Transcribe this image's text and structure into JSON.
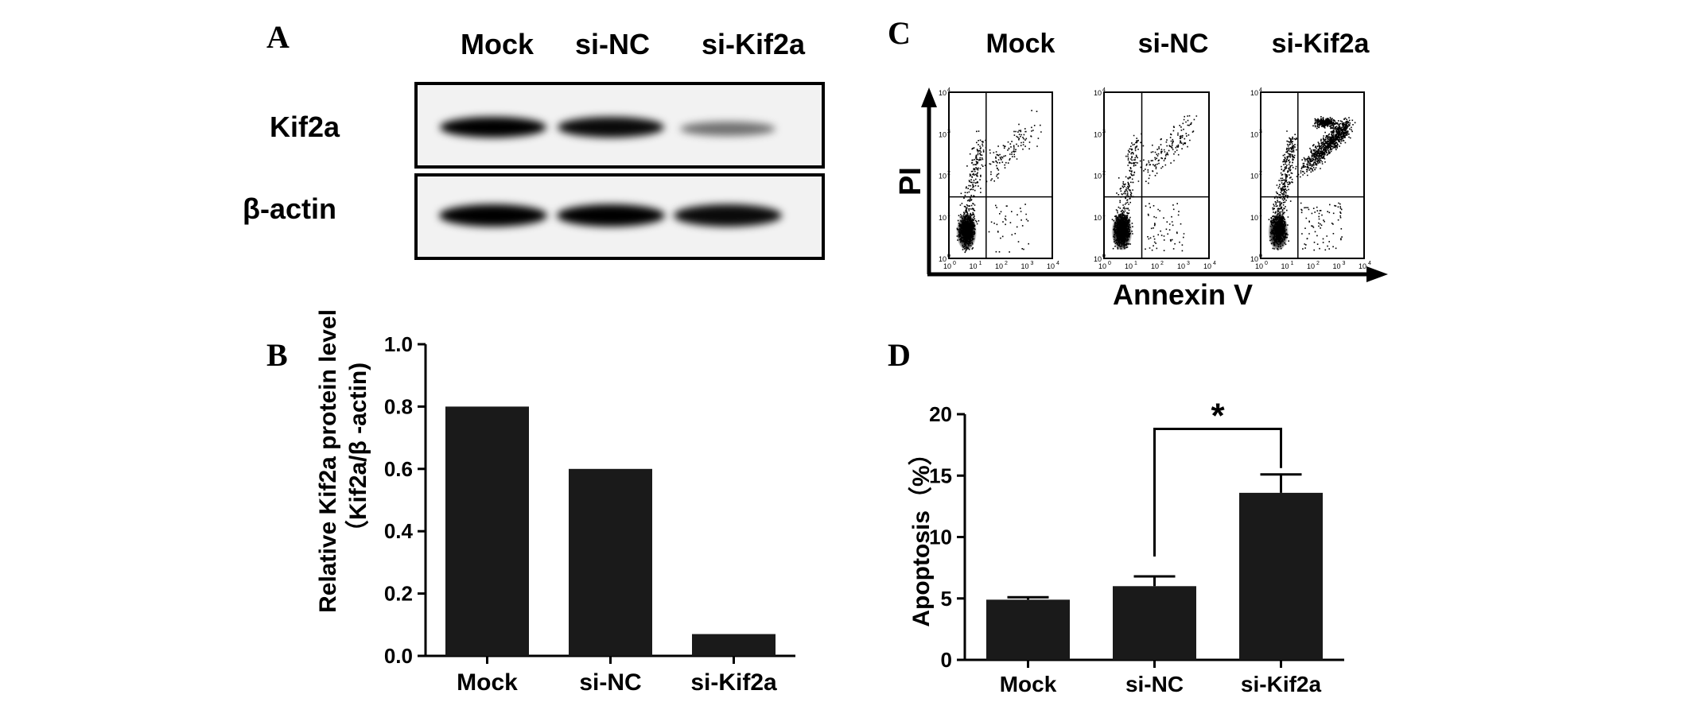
{
  "panels": {
    "A": {
      "letter": "A",
      "lanes": [
        "Mock",
        "si-NC",
        "si-Kif2a"
      ],
      "rows": [
        {
          "label": "Kif2a",
          "band_intensity": [
            1.0,
            0.95,
            0.45
          ]
        },
        {
          "label": "β-actin",
          "band_intensity": [
            1.0,
            1.0,
            0.95
          ]
        }
      ]
    },
    "B": {
      "letter": "B"
    },
    "C": {
      "letter": "C",
      "columns": [
        "Mock",
        "si-NC",
        "si-Kif2a"
      ],
      "ylabel": "PI",
      "xlabel": "Annexin V",
      "log_ticks": [
        {
          "base": "10",
          "exp": "0"
        },
        {
          "base": "10",
          "exp": "1"
        },
        {
          "base": "10",
          "exp": "2"
        },
        {
          "base": "10",
          "exp": "3"
        },
        {
          "base": "10",
          "exp": "4"
        }
      ]
    },
    "D": {
      "letter": "D"
    }
  },
  "chart_data": [
    {
      "panel": "B",
      "type": "bar",
      "categories": [
        "Mock",
        "si-NC",
        "si-Kif2a"
      ],
      "values": [
        0.8,
        0.6,
        0.07
      ],
      "ylabel_lines": [
        "Relative  Kif2a protein level",
        "（Kif2a/β -actin)"
      ],
      "ylim": [
        0,
        1.0
      ],
      "yticks": [
        0.0,
        0.2,
        0.4,
        0.6,
        0.8,
        1.0
      ],
      "ytick_labels": [
        "0.0",
        "0.2",
        "0.4",
        "0.6",
        "0.8",
        "1.0"
      ],
      "bar_color": "#1a1a1a"
    },
    {
      "panel": "D",
      "type": "bar",
      "categories": [
        "Mock",
        "si-NC",
        "si-Kif2a"
      ],
      "values": [
        4.9,
        6.0,
        13.6
      ],
      "errors": [
        0.2,
        0.8,
        1.5
      ],
      "ylabel": "Apoptosis（%）",
      "ylim": [
        0,
        20
      ],
      "yticks": [
        0,
        5,
        10,
        15,
        20
      ],
      "ytick_labels": [
        "0",
        "5",
        "10",
        "15",
        "20"
      ],
      "significance": {
        "from": "si-NC",
        "to": "si-Kif2a",
        "label": "*"
      },
      "bar_color": "#1a1a1a"
    }
  ]
}
